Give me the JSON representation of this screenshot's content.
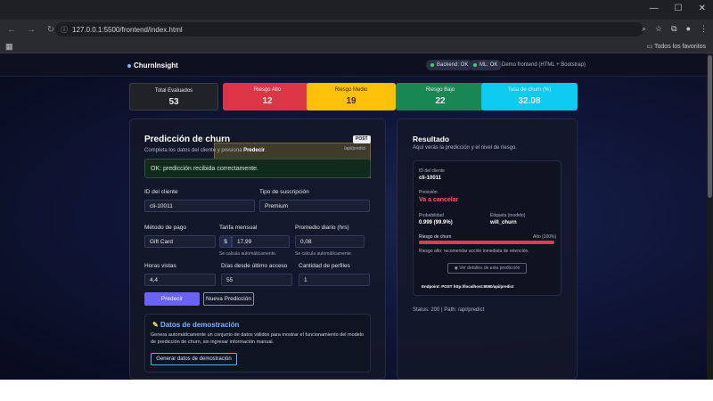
{
  "browser": {
    "url": "127.0.0.1:5500/frontend/index.html",
    "bookmarks_folder": "Todos los favoritos"
  },
  "navbar": {
    "brand": "ChurnInsight",
    "backend_status": "Backend: OK",
    "ml_status": "ML: OK",
    "note": "Demo frontend (HTML + Bootstrap)"
  },
  "stats": [
    {
      "label": "Total Evaluados",
      "value": "53",
      "color": "#202227"
    },
    {
      "label": "Riesgo Alto",
      "value": "12",
      "color": "#dc3545"
    },
    {
      "label": "Riesgo Medio",
      "value": "19",
      "color": "#ffc107"
    },
    {
      "label": "Riesgo Bajo",
      "value": "22",
      "color": "#198754"
    },
    {
      "label": "Tasa de churn (%)",
      "value": "32.08",
      "color": "#0dcaf0"
    }
  ],
  "prediction": {
    "title": "Predicción de churn",
    "method_badge": "POST",
    "endpoint": "/api/predict",
    "subtitle_pre": "Completa los datos del cliente y presiona ",
    "subtitle_bold": "Predecir",
    "subtitle_post": ".",
    "alert": "OK: predicción recibida correctamente.",
    "fields": {
      "client_id": {
        "label": "ID del cliente",
        "value": "cli-10011"
      },
      "subscription": {
        "label": "Tipo de suscripción",
        "value": "Premium"
      },
      "payment": {
        "label": "Método de pago",
        "value": "Gift Card"
      },
      "monthly_fee": {
        "label": "Tarifa mensual",
        "prefix": "$",
        "value": "17,99",
        "help": "Se calcula automáticamente."
      },
      "daily_avg": {
        "label": "Promedio diario (hrs)",
        "value": "0,08",
        "help": "Se calcula automáticamente."
      },
      "hours_watched": {
        "label": "Horas vistas",
        "value": "4,4"
      },
      "days_since": {
        "label": "Días desde último acceso",
        "value": "55"
      },
      "profiles": {
        "label": "Cantidad de perfiles",
        "value": "1"
      }
    },
    "predict_button": "Predecir",
    "new_button": "Nueva Predicción"
  },
  "demo": {
    "title": "Datos de demostración",
    "text": "Genera automáticamente un conjunto de datos válidos para mostrar el funcionamiento del modelo de predicción de churn, sin ingresar información manual.",
    "button": "Generar datos de demostración"
  },
  "result": {
    "title": "Resultado",
    "subtitle": "Aquí verás la predicción y el nivel de riesgo.",
    "client_id_label": "ID del cliente",
    "client_id": "cli-10011",
    "forecast_label": "Previsión",
    "forecast": "Va a cancelar",
    "probability_label": "Probabilidad",
    "probability": "0.999 (99.9%)",
    "tag_label": "Etiqueta (modelo)",
    "tag": "will_churn",
    "risk_label": "Riesgo de churn",
    "risk_level": "Alto (100%)",
    "risk_fill": 1.0,
    "risk_note": "Riesgo alto: recomendar acción inmediata de retención.",
    "details_button": "Ver detalles de esta predicción",
    "endpoint_line": "Endpoint: POST http://localhost:8080/api/predict",
    "status_line": "Status: 200 | Path: /api/predict"
  }
}
